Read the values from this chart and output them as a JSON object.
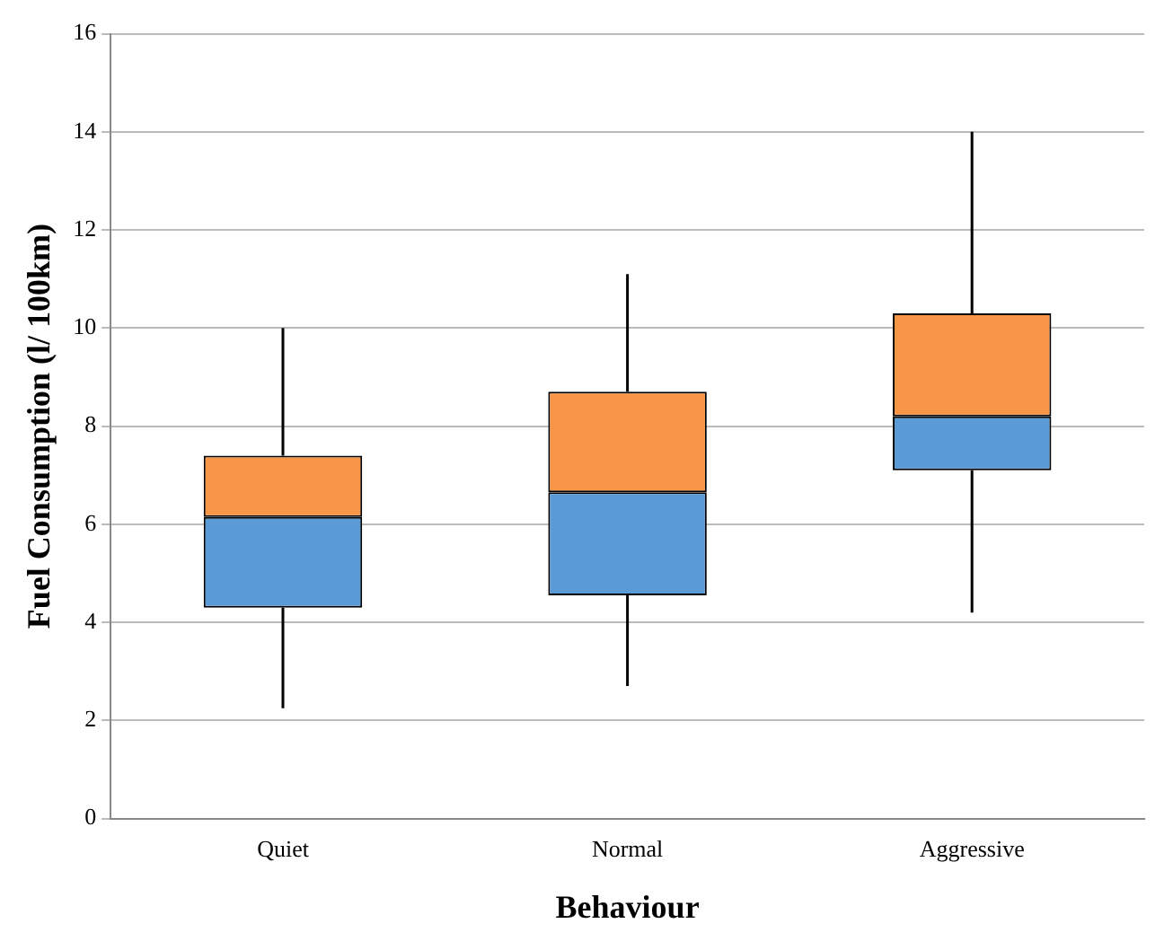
{
  "chart_data": {
    "type": "box",
    "xlabel": "Behaviour",
    "ylabel": "Fuel Consumption (l/ 100km)",
    "categories": [
      "Quiet",
      "Normal",
      "Aggressive"
    ],
    "series": [
      {
        "color": "#f79646",
        "colors": [
          "#5b9bd5",
          "#5b9bd5",
          "#5b9bd5"
        ],
        "boxes": [
          {
            "low": 2.25,
            "q1": 4.3,
            "median": 6.15,
            "q3": 7.4,
            "high": 10.0
          },
          {
            "low": 2.7,
            "q1": 4.55,
            "median": 6.65,
            "q3": 8.7,
            "high": 11.1
          },
          {
            "low": 4.2,
            "q1": 7.1,
            "median": 8.2,
            "q3": 10.3,
            "high": 14.0
          }
        ]
      }
    ],
    "ylim": [
      0,
      16
    ],
    "yticks": [
      0,
      2,
      4,
      6,
      8,
      10,
      12,
      14,
      16
    ],
    "grid": "y",
    "legend": false
  }
}
